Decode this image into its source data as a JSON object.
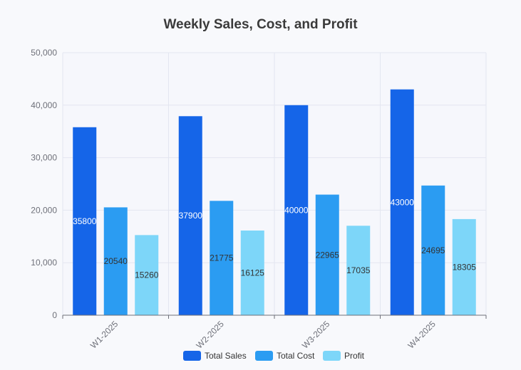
{
  "chart_data": {
    "type": "bar",
    "title": "Weekly Sales, Cost, and Profit",
    "categories": [
      "W1-2025",
      "W2-2025",
      "W3-2025",
      "W4-2025"
    ],
    "series": [
      {
        "name": "Total Sales",
        "color": "#1565e8",
        "label_color": "#ffffff",
        "values": [
          35800,
          37900,
          40000,
          43000
        ]
      },
      {
        "name": "Total Cost",
        "color": "#2b9cf2",
        "label_color": "#333333",
        "values": [
          20540,
          21775,
          22965,
          24695
        ]
      },
      {
        "name": "Profit",
        "color": "#7dd6f9",
        "label_color": "#333333",
        "values": [
          15260,
          16125,
          17035,
          18305
        ]
      }
    ],
    "yticks": [
      "0",
      "10,000",
      "20,000",
      "30,000",
      "40,000",
      "50,000"
    ],
    "ylim": [
      0,
      50000
    ],
    "xlabel": "",
    "ylabel": "",
    "legend": "bottom-center",
    "grid": true
  }
}
